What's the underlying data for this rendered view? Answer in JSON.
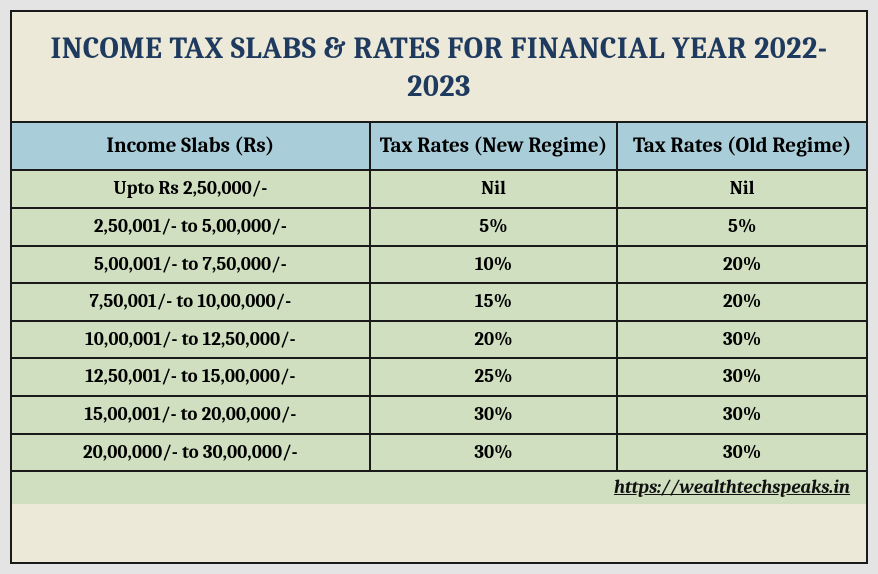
{
  "title": "INCOME TAX SLABS & RATES FOR FINANCIAL YEAR 2022-2023",
  "table": {
    "columns": [
      "Income Slabs (Rs)",
      "Tax Rates (New Regime)",
      "Tax Rates (Old Regime)"
    ],
    "rows": [
      {
        "slab": "Upto Rs 2,50,000/-",
        "new_rate": "Nil",
        "old_rate": "Nil"
      },
      {
        "slab": "2,50,001/- to 5,00,000/-",
        "new_rate": "5%",
        "old_rate": "5%"
      },
      {
        "slab": "5,00,001/- to 7,50,000/-",
        "new_rate": "10%",
        "old_rate": "20%"
      },
      {
        "slab": "7,50,001/- to 10,00,000/-",
        "new_rate": "15%",
        "old_rate": "20%"
      },
      {
        "slab": "10,00,001/- to 12,50,000/-",
        "new_rate": "20%",
        "old_rate": "30%"
      },
      {
        "slab": "12,50,001/- to 15,00,000/-",
        "new_rate": "25%",
        "old_rate": "30%"
      },
      {
        "slab": "15,00,001/- to 20,00,000/-",
        "new_rate": "30%",
        "old_rate": "30%"
      },
      {
        "slab": "20,00,000/- to 30,00,000/-",
        "new_rate": "30%",
        "old_rate": "30%"
      }
    ]
  },
  "footer_link": "https://wealthtechspeaks.in",
  "style": {
    "outer_bg": "#e4e4e4",
    "container_bg": "#ede9d8",
    "border_color": "#1a1a1a",
    "header_bg": "#a9cdd9",
    "row_bg": "#d0dfc0",
    "title_color": "#1f3a5f",
    "title_fontsize": 30,
    "header_fontsize": 21,
    "cell_fontsize": 19,
    "col_widths_pct": [
      42,
      29,
      29
    ]
  }
}
